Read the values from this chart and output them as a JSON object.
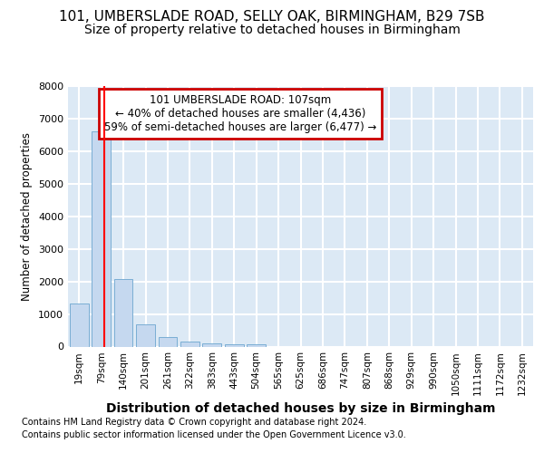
{
  "title1": "101, UMBERSLADE ROAD, SELLY OAK, BIRMINGHAM, B29 7SB",
  "title2": "Size of property relative to detached houses in Birmingham",
  "xlabel": "Distribution of detached houses by size in Birmingham",
  "ylabel": "Number of detached properties",
  "bin_labels": [
    "19sqm",
    "79sqm",
    "140sqm",
    "201sqm",
    "261sqm",
    "322sqm",
    "383sqm",
    "443sqm",
    "504sqm",
    "565sqm",
    "625sqm",
    "686sqm",
    "747sqm",
    "807sqm",
    "868sqm",
    "929sqm",
    "990sqm",
    "1050sqm",
    "1111sqm",
    "1172sqm",
    "1232sqm"
  ],
  "bar_values": [
    1310,
    6600,
    2080,
    690,
    300,
    150,
    100,
    60,
    60,
    0,
    0,
    0,
    0,
    0,
    0,
    0,
    0,
    0,
    0,
    0,
    0
  ],
  "bar_color": "#c5d8ef",
  "bar_edge_color": "#7aaed4",
  "property_line_x": 1.15,
  "annotation_text": "101 UMBERSLADE ROAD: 107sqm\n← 40% of detached houses are smaller (4,436)\n59% of semi-detached houses are larger (6,477) →",
  "annotation_box_facecolor": "#ffffff",
  "annotation_box_edgecolor": "#cc0000",
  "ymax": 8000,
  "yticks": [
    0,
    1000,
    2000,
    3000,
    4000,
    5000,
    6000,
    7000,
    8000
  ],
  "footer1": "Contains HM Land Registry data © Crown copyright and database right 2024.",
  "footer2": "Contains public sector information licensed under the Open Government Licence v3.0.",
  "fig_bg_color": "#ffffff",
  "plot_bg_color": "#dce9f5",
  "grid_color": "#ffffff",
  "title1_fontsize": 11,
  "title2_fontsize": 10,
  "tick_fontsize": 7.5,
  "ylabel_fontsize": 8.5,
  "xlabel_fontsize": 10,
  "footer_fontsize": 7,
  "annotation_fontsize": 8.5
}
